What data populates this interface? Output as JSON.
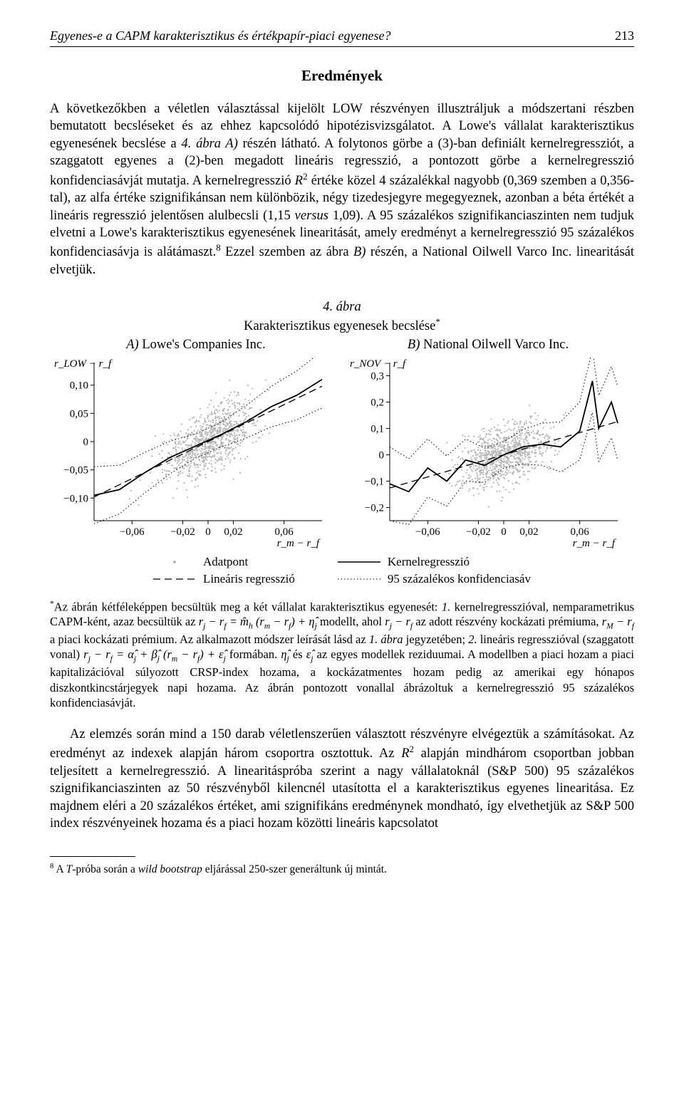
{
  "running_head": {
    "title": "Egyenes-e a CAPM karakterisztikus és értékpapír-piaci egyenese?",
    "page": "213"
  },
  "section_heading": "Eredmények",
  "para1": "A következőkben a véletlen választással kijelölt LOW részvényen illusztráljuk a módszertani részben bemutatott becsléseket és az ehhez kapcsolódó hipotézisvizsgálatot. A Lowe's vállalat karakterisztikus egyenesének becslése a 4. ábra A) részén látható. A folytonos görbe a (3)-ban definiált kernelregressziót, a szaggatott egyenes a (2)-ben megadott lineáris regresszió, a pontozott görbe a kernelregresszió konfidenciasávját mutatja. A kernelregresszió R² értéke közel 4 százalékkal nagyobb (0,369 szemben a 0,356-tal), az alfa értéke szignifikánsan nem különbözik, négy tizedesjegyre megegyeznek, azonban a béta értékét a lineáris regresszió jelentősen alulbecsli (1,15 versus 1,09). A 95 százalékos szignifikanciaszinten nem tudjuk elvetni a Lowe's karakterisztikus egyenesének linearitását, amely eredményt a kernelregresszió 95 százalékos konfidenciasávja is alátámaszt.⁸ Ezzel szemben az ábra B) részén, a National Oilwell Varco Inc. linearitását elvetjük.",
  "figure": {
    "number": "4. ábra",
    "title": "Karakterisztikus egyenesek becslése*",
    "panelA": {
      "label": "A)",
      "name": "Lowe's Companies Inc."
    },
    "panelB": {
      "label": "B)",
      "name": "National Oilwell Varco Inc."
    },
    "ylabelA": "r_LOW − r_f",
    "ylabelB": "r_NOV − r_f",
    "xlabel": "r_m − r_f",
    "chartA": {
      "xlim": [
        -0.09,
        0.09
      ],
      "ylim": [
        -0.14,
        0.14
      ],
      "xticks": [
        -0.06,
        -0.02,
        0,
        0.02,
        0.06
      ],
      "yticks": [
        -0.1,
        -0.05,
        0,
        0.05,
        0.1
      ],
      "xtick_labels": [
        "−0,06",
        "−0,02",
        "0",
        "0,02",
        "0,06"
      ],
      "ytick_labels": [
        "−0,10",
        "−0,05",
        "0",
        "0,05",
        "0,10"
      ],
      "point_color": "#b5b5b5",
      "line_color": "#000000",
      "n_points": 900,
      "scatter_sd_x": 0.018,
      "scatter_sd_y": 0.028,
      "linear": {
        "slope": 1.09,
        "intercept": 0
      },
      "kernel": [
        [
          -0.09,
          -0.095
        ],
        [
          -0.07,
          -0.085
        ],
        [
          -0.05,
          -0.055
        ],
        [
          -0.03,
          -0.028
        ],
        [
          -0.01,
          -0.008
        ],
        [
          0.01,
          0.012
        ],
        [
          0.03,
          0.035
        ],
        [
          0.05,
          0.062
        ],
        [
          0.07,
          0.082
        ],
        [
          0.09,
          0.11
        ]
      ],
      "band_hw": 0.018
    },
    "chartB": {
      "xlim": [
        -0.09,
        0.09
      ],
      "ylim": [
        -0.25,
        0.35
      ],
      "xticks": [
        -0.06,
        -0.02,
        0,
        0.02,
        0.06
      ],
      "yticks": [
        -0.2,
        -0.1,
        0,
        0.1,
        0.2,
        0.3
      ],
      "xtick_labels": [
        "−0,06",
        "−0,02",
        "0",
        "0,02",
        "0,06"
      ],
      "ytick_labels": [
        "−0,2",
        "−0,1",
        "0",
        "0,1",
        "0,2",
        "0,3"
      ],
      "point_color": "#b5b5b5",
      "line_color": "#000000",
      "n_points": 900,
      "scatter_sd_x": 0.018,
      "scatter_sd_y": 0.055,
      "linear": {
        "slope": 1.4,
        "intercept": 0
      },
      "kernel": [
        [
          -0.09,
          -0.11
        ],
        [
          -0.075,
          -0.14
        ],
        [
          -0.06,
          -0.05
        ],
        [
          -0.045,
          -0.1
        ],
        [
          -0.03,
          -0.02
        ],
        [
          -0.015,
          -0.04
        ],
        [
          0,
          0.0
        ],
        [
          0.015,
          0.03
        ],
        [
          0.03,
          0.04
        ],
        [
          0.045,
          0.03
        ],
        [
          0.06,
          0.09
        ],
        [
          0.07,
          0.28
        ],
        [
          0.075,
          0.1
        ],
        [
          0.085,
          0.2
        ],
        [
          0.09,
          0.12
        ]
      ],
      "band_hw": 0.05
    },
    "legend": {
      "point": "Adatpont",
      "linear": "Lineáris regresszió",
      "kernel": "Kernelregresszió",
      "band": "95 százalékos konfidenciasáv"
    }
  },
  "fig_footnote": "*Az ábrán kétféleképpen becsültük meg a két vállalat karakterisztikus egyenesét: 1. kernelregresszióval, nemparametrikus CAPM-ként, azaz becsültük az r_j − r_f = m̂_h (r_m − r_f) + η̂_j modellt, ahol r_j − r_f az adott részvény kockázati prémiuma, r_M − r_f a piaci kockázati prémium. Az alkalmazott módszer leírását lásd az 1. ábra jegyzetében; 2. lineáris regresszióval (szaggatott vonal) r_j − r_f = α̂_j + β̂_j (r_m − r_f) + ε̂_j formában. η̂_j és ε̂_j az egyes modellek reziduumai. A modellben a piaci hozam a piaci kapitalizációval súlyozott CRSP-index hozama, a kockázatmentes hozam pedig az amerikai egy hónapos diszkontkincstárjegyek napi hozama. Az ábrán pontozott vonallal ábrázoltuk a kernelregresszió 95 százalékos konfidenciasávját.",
  "para2": "Az elemzés során mind a 150 darab véletlenszerűen választott részvényre elvégeztük a számításokat. Az eredményt az indexek alapján három csoportra osztottuk. Az R² alapján mindhárom csoportban jobban teljesített a kernelregresszió. A linearitáspróba szerint a nagy vállalatoknál (S&P 500) 95 százalékos szignifikanciaszinten az 50 részvényből kilencnél utasította el a karakterisztikus egyenes linearitása. Ez majdnem eléri a 20 százalékos értéket, ami szignifikáns eredménynek mondható, így elvethetjük az S&P 500 index részvényeinek hozama és a piaci hozam közötti lineáris kapcsolatot",
  "bottom_footnote": "⁸ A T-próba során a wild bootstrap eljárással 250-szer generáltunk új mintát."
}
